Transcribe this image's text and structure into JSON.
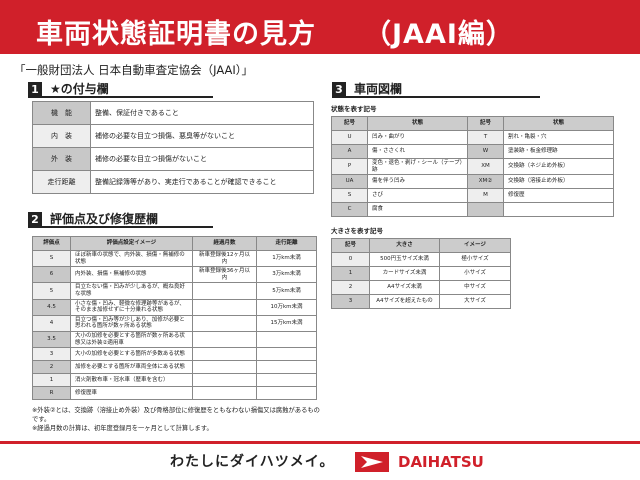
{
  "header": {
    "title": "車両状態証明書の見方",
    "subtitle": "（JAAI編）"
  },
  "org": "「一般財団法人 日本自動車査定協会（JAAI）」",
  "section1": {
    "num": "1",
    "title": "★の付与欄",
    "rows": [
      {
        "k": "機　能",
        "v": "整備、保証付きであること"
      },
      {
        "k": "内　装",
        "v": "補修の必要な目立つ損傷、悪臭等がないこと"
      },
      {
        "k": "外　装",
        "v": "補修の必要な目立つ損傷がないこと"
      },
      {
        "k": "走行距離",
        "v": "整備記録簿等があり、実走行であることが確認できること"
      }
    ]
  },
  "section2": {
    "num": "2",
    "title": "評価点及び修復歴欄",
    "headers": [
      "評価点",
      "評価点設定イメージ",
      "経過月数",
      "走行距離"
    ],
    "rows": [
      [
        "S",
        "ほぼ新車の状態で、内外装、損傷・無補修の状態",
        "新車登録後12ヶ月以内",
        "1万km未満"
      ],
      [
        "6",
        "内外装、損傷・無補修の状態",
        "新車登録後36ヶ月以内",
        "3万km未満"
      ],
      [
        "5",
        "目立たない傷・凹みが少しあるが、概ね良好な状態",
        "",
        "5万km未満"
      ],
      [
        "4.5",
        "小さな傷・凹み、軽微な修理跡等があるが、そのまま加修せずに十分乗れる状態",
        "",
        "10万km未満"
      ],
      [
        "4",
        "目立つ傷・凹み等が少しあり、加修が必要と思われる箇所が数ヶ所ある状態",
        "",
        "15万km未満"
      ],
      [
        "3.5",
        "大小の加修を必要とする箇所が数ヶ所ある状態又は外装②適用車",
        "",
        ""
      ],
      [
        "3",
        "大小の加修を必要とする箇所が多数ある状態",
        "",
        ""
      ],
      [
        "2",
        "加修を必要とする箇所が車両全体にある状態",
        "",
        ""
      ],
      [
        "1",
        "消火剤散布車・冠水車（歴車を含む）",
        "",
        ""
      ],
      [
        "R",
        "修復歴車",
        "",
        ""
      ]
    ]
  },
  "notes": [
    "※外装②とは、交換跡（溶接止め外装）及び骨格部位に修復歴をともなわない損傷又は腐蝕があるものです。",
    "※経過月数の計算は、初年度登録月を一ヶ月として計算します。"
  ],
  "section3": {
    "num": "3",
    "title": "車両図欄",
    "state_label": "状態を表す記号",
    "state_headers": [
      "記号",
      "状態",
      "記号",
      "状態"
    ],
    "state_rows": [
      [
        "U",
        "凹み・曲がり",
        "T",
        "割れ・亀裂・穴"
      ],
      [
        "A",
        "傷・ささくれ",
        "W",
        "塗装跡・板金修理跡"
      ],
      [
        "P",
        "変色・退色・剥げ・シール（テープ）跡",
        "XM",
        "交換跡（ネジ止め外板）"
      ],
      [
        "UA",
        "傷を伴う凹み",
        "XM②",
        "交換跡（溶接止め外板）"
      ],
      [
        "S",
        "さび",
        "M",
        "修復歴"
      ],
      [
        "C",
        "腐食",
        "",
        ""
      ]
    ],
    "size_label": "大きさを表す記号",
    "size_headers": [
      "記号",
      "大きさ",
      "イメージ"
    ],
    "size_rows": [
      [
        "0",
        "500円玉サイズ未満",
        "極小サイズ"
      ],
      [
        "1",
        "カードサイズ未満",
        "小サイズ"
      ],
      [
        "2",
        "A4サイズ未満",
        "中サイズ"
      ],
      [
        "3",
        "A4サイズを超えたもの",
        "大サイズ"
      ]
    ]
  },
  "footer": {
    "slogan": "わたしにダイハツメイ。",
    "brand": "DAIHATSU",
    "brand_color": "#d0202a"
  }
}
